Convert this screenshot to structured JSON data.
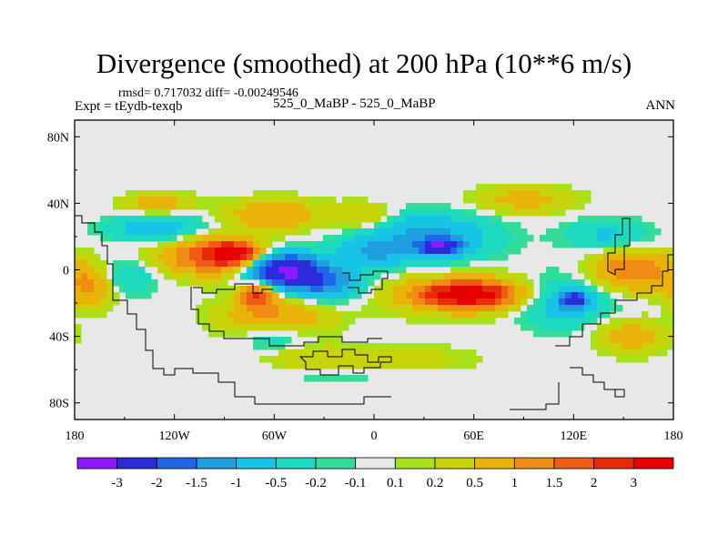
{
  "header": {
    "title": "Divergence (smoothed) at 200 hPa (10**6 m/s)",
    "stats": "rmsd= 0.717032 diff= -0.00249546",
    "expt": "Expt = tEydb-texqb",
    "case": "525_0_MaBP - 525_0_MaBP",
    "season": "ANN"
  },
  "chart_data": {
    "type": "heatmap",
    "title": "Divergence (smoothed) at 200 hPa (10**6 m/s)",
    "xlabel": "",
    "ylabel": "",
    "xlim": [
      -180,
      180
    ],
    "ylim": [
      -90,
      90
    ],
    "x_ticks": [
      {
        "value": -180,
        "label": "180"
      },
      {
        "value": -120,
        "label": "120W"
      },
      {
        "value": -60,
        "label": "60W"
      },
      {
        "value": 0,
        "label": "0"
      },
      {
        "value": 60,
        "label": "60E"
      },
      {
        "value": 120,
        "label": "120E"
      },
      {
        "value": 180,
        "label": "180"
      }
    ],
    "y_ticks": [
      {
        "value": 80,
        "label": "80N"
      },
      {
        "value": 40,
        "label": "40N"
      },
      {
        "value": 0,
        "label": "0"
      },
      {
        "value": -40,
        "label": "40S"
      },
      {
        "value": -80,
        "label": "80S"
      }
    ],
    "colorbar": {
      "labels": [
        "-3",
        "-2",
        "-1.5",
        "-1",
        "-0.5",
        "-0.2",
        "-0.1",
        "0.1",
        "0.2",
        "0.5",
        "1",
        "1.5",
        "2",
        "3"
      ],
      "colors": [
        "#8c1aff",
        "#2b2bd9",
        "#1f66e8",
        "#1f9ee0",
        "#17c4e6",
        "#1cd9c0",
        "#33dd99",
        "#e8e8e8",
        "#a8e01c",
        "#c8d40a",
        "#e8b40a",
        "#f08c14",
        "#f05a14",
        "#e62a0a",
        "#e60000"
      ]
    },
    "blobs": [
      {
        "lon": -55,
        "lat": 0,
        "rlon": 22,
        "rlat": 10,
        "value": -3.2
      },
      {
        "lon": -30,
        "lat": -8,
        "rlon": 22,
        "rlat": 10,
        "value": -1.5
      },
      {
        "lon": 30,
        "lat": 20,
        "rlon": 40,
        "rlat": 14,
        "value": -1.1
      },
      {
        "lon": 40,
        "lat": 14,
        "rlon": 12,
        "rlat": 5,
        "value": -2.4
      },
      {
        "lon": 0,
        "lat": 10,
        "rlon": 20,
        "rlat": 8,
        "value": -0.8
      },
      {
        "lon": 110,
        "lat": -18,
        "rlon": 30,
        "rlat": 14,
        "value": -1.1
      },
      {
        "lon": 120,
        "lat": -18,
        "rlon": 8,
        "rlat": 5,
        "value": -2.0
      },
      {
        "lon": -130,
        "lat": 25,
        "rlon": 28,
        "rlat": 8,
        "value": -0.9
      },
      {
        "lon": -150,
        "lat": -5,
        "rlon": 18,
        "rlat": 10,
        "value": -0.6
      },
      {
        "lon": 140,
        "lat": 20,
        "rlon": 25,
        "rlat": 10,
        "value": -0.6
      },
      {
        "lon": -20,
        "lat": -60,
        "rlon": 55,
        "rlat": 10,
        "value": -0.5
      },
      {
        "lon": -60,
        "lat": -40,
        "rlon": 18,
        "rlat": 8,
        "value": -0.6
      },
      {
        "lon": -95,
        "lat": 8,
        "rlon": 30,
        "rlat": 11,
        "value": 2.0
      },
      {
        "lon": -85,
        "lat": 10,
        "rlon": 13,
        "rlat": 5,
        "value": 3.1
      },
      {
        "lon": 60,
        "lat": -15,
        "rlon": 45,
        "rlat": 11,
        "value": 1.6
      },
      {
        "lon": 55,
        "lat": -15,
        "rlon": 22,
        "rlat": 6,
        "value": 3.0
      },
      {
        "lon": -60,
        "lat": -28,
        "rlon": 32,
        "rlat": 12,
        "value": 1.0
      },
      {
        "lon": -70,
        "lat": -15,
        "rlon": 10,
        "rlat": 8,
        "value": 2.0
      },
      {
        "lon": -60,
        "lat": 33,
        "rlon": 28,
        "rlat": 9,
        "value": 1.0
      },
      {
        "lon": -130,
        "lat": 40,
        "rlon": 20,
        "rlat": 6,
        "value": 0.8
      },
      {
        "lon": -5,
        "lat": 32,
        "rlon": 18,
        "rlat": 8,
        "value": 0.7
      },
      {
        "lon": 90,
        "lat": 42,
        "rlon": 30,
        "rlat": 8,
        "value": 0.7
      },
      {
        "lon": 155,
        "lat": 0,
        "rlon": 24,
        "rlat": 12,
        "value": 1.5
      },
      {
        "lon": -170,
        "lat": -10,
        "rlon": 14,
        "rlat": 12,
        "value": 1.2
      },
      {
        "lon": 10,
        "lat": -55,
        "rlon": 45,
        "rlat": 9,
        "value": 0.6
      },
      {
        "lon": -40,
        "lat": -55,
        "rlon": 30,
        "rlat": 8,
        "value": 0.6
      },
      {
        "lon": 155,
        "lat": -40,
        "rlon": 20,
        "rlat": 10,
        "value": 0.8
      }
    ]
  }
}
